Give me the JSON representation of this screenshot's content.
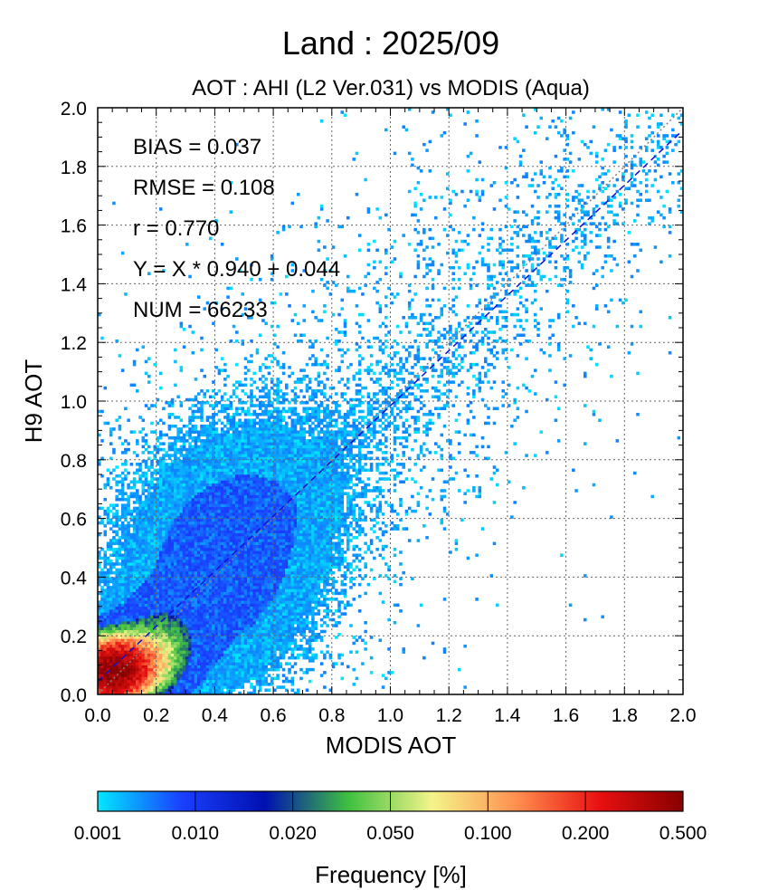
{
  "chart_data": {
    "type": "heatmap",
    "title": "Land  :  2025/09",
    "subtitle": "AOT : AHI (L2 Ver.031) vs MODIS (Aqua)",
    "xlabel": "MODIS AOT",
    "ylabel": "H9 AOT",
    "xlim": [
      0.0,
      2.0
    ],
    "ylim": [
      0.0,
      2.0
    ],
    "x_ticks": [
      "0.0",
      "0.2",
      "0.4",
      "0.6",
      "0.8",
      "1.0",
      "1.2",
      "1.4",
      "1.6",
      "1.8",
      "2.0"
    ],
    "y_ticks": [
      "0.0",
      "0.2",
      "0.4",
      "0.6",
      "0.8",
      "1.0",
      "1.2",
      "1.4",
      "1.6",
      "1.8",
      "2.0"
    ],
    "grid": true,
    "grid_style": "dotted",
    "stats": {
      "bias": "BIAS = 0.037",
      "rmse": "RMSE = 0.108",
      "r": "r = 0.770",
      "fit": "Y = X * 0.940 + 0.044",
      "num": "NUM = 66233"
    },
    "reference_lines": [
      {
        "kind": "one-to-one",
        "slope": 1.0,
        "intercept": 0.0,
        "color": "#808080",
        "style": "dotted"
      },
      {
        "kind": "regression",
        "slope": 0.94,
        "intercept": 0.044,
        "color": "#1010d0",
        "style": "dashed"
      }
    ],
    "colorbar": {
      "label": "Frequency [%]",
      "ticks": [
        "0.001",
        "0.010",
        "0.020",
        "0.050",
        "0.100",
        "0.200",
        "0.500"
      ],
      "colors": [
        "#00e8ff",
        "#1a40ff",
        "#0010b0",
        "#3fc040",
        "#f4f48a",
        "#ff9050",
        "#e81010",
        "#880000"
      ]
    },
    "density_clusters": [
      {
        "x": 0.05,
        "y": 0.08,
        "sx": 0.06,
        "sy": 0.06,
        "peak": 0.45
      },
      {
        "x": 0.14,
        "y": 0.1,
        "sx": 0.07,
        "sy": 0.06,
        "peak": 0.12
      },
      {
        "x": 0.22,
        "y": 0.18,
        "sx": 0.08,
        "sy": 0.08,
        "peak": 0.03
      },
      {
        "x": 0.4,
        "y": 0.4,
        "sx": 0.16,
        "sy": 0.2,
        "peak": 0.006
      },
      {
        "x": 0.55,
        "y": 0.62,
        "sx": 0.18,
        "sy": 0.2,
        "peak": 0.003
      }
    ]
  }
}
